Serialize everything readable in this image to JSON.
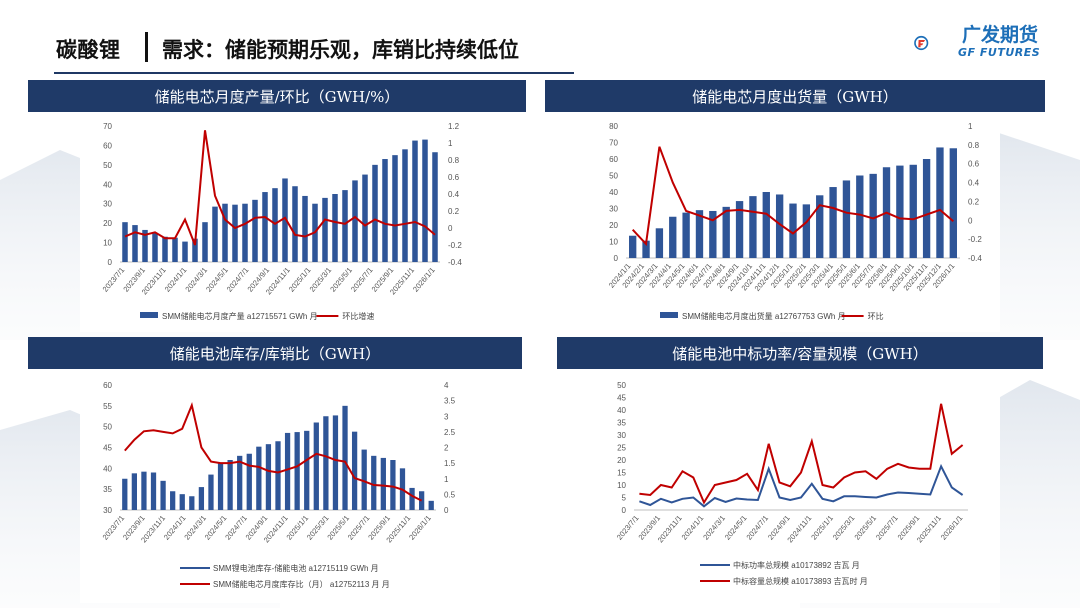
{
  "header": {
    "title": "碳酸锂",
    "subtitle": "需求：储能预期乐观，库销比持续低位",
    "logo_cn": "广发期货",
    "logo_en": "GF FUTURES"
  },
  "colors": {
    "bar": "#2f5597",
    "line_red": "#c00000",
    "line_blue": "#2f5597",
    "panel": "#1f3a68"
  },
  "panels": [
    {
      "title": "储能电芯月度产量/环比（GWH/%）"
    },
    {
      "title": "储能电芯月度出货量（GWH）"
    },
    {
      "title": "储能电池库存/库销比（GWH）"
    },
    {
      "title": "储能电池中标功率/容量规模（GWH）"
    }
  ],
  "chart_data": [
    {
      "type": "bar",
      "x_ticks": [
        "2023/7/1",
        "2023/9/1",
        "2023/11/1",
        "2024/1/1",
        "2024/3/1",
        "2024/5/1",
        "2024/7/1",
        "2024/9/1",
        "2024/11/1",
        "2025/1/1",
        "2025/3/1",
        "2025/5/1",
        "2025/7/1",
        "2025/9/1",
        "2025/11/1",
        "2026/1/1"
      ],
      "left_ticks": [
        "0",
        "10",
        "20",
        "30",
        "40",
        "50",
        "60",
        "70"
      ],
      "right_ticks": [
        "-0.4",
        "-0.2",
        "0",
        "0.2",
        "0.4",
        "0.6",
        "0.8",
        "1",
        "1.2"
      ],
      "ylim": [
        0,
        70
      ],
      "y2lim": [
        -0.4,
        1.2
      ],
      "series": [
        {
          "name": "SMM储能电芯月度产量 a12715571 GWh 月",
          "type": "bar",
          "values": [
            20.5,
            19,
            16.5,
            15,
            13,
            12.5,
            10.5,
            12,
            20.5,
            28.5,
            30,
            29.5,
            30,
            32,
            36,
            38,
            43,
            39,
            34,
            30,
            33,
            35,
            37,
            42,
            45,
            50,
            53,
            55,
            58,
            62.5,
            63,
            56.5
          ]
        },
        {
          "name": "环比增速",
          "type": "line",
          "axis": "right",
          "values": [
            -0.1,
            -0.05,
            -0.08,
            -0.05,
            -0.12,
            -0.12,
            0.1,
            -0.2,
            1.15,
            0.38,
            0.1,
            0.0,
            0.05,
            0.12,
            0.13,
            0.05,
            0.12,
            -0.08,
            -0.1,
            -0.05,
            0.1,
            0.07,
            0.05,
            0.13,
            0.03,
            0.1,
            0.05,
            0.03,
            0.05,
            0.07,
            0.02,
            -0.08
          ]
        }
      ]
    },
    {
      "type": "bar",
      "x_ticks": [
        "2024/1/1",
        "2024/2/1",
        "2024/3/1",
        "2024/4/1",
        "2024/5/1",
        "2024/6/1",
        "2024/7/1",
        "2024/8/1",
        "2024/9/1",
        "2024/10/1",
        "2024/11/1",
        "2024/12/1",
        "2025/1/1",
        "2025/2/1",
        "2025/3/1",
        "2025/4/1",
        "2025/5/1",
        "2025/6/1",
        "2025/7/1",
        "2025/8/1",
        "2025/9/1",
        "2025/10/1",
        "2025/11/1",
        "2025/12/1",
        "2026/1/1"
      ],
      "left_ticks": [
        "0",
        "10",
        "20",
        "30",
        "40",
        "50",
        "60",
        "70",
        "80"
      ],
      "right_ticks": [
        "-0.4",
        "-0.2",
        "0",
        "0.2",
        "0.4",
        "0.6",
        "0.8",
        "1"
      ],
      "ylim": [
        0,
        80
      ],
      "y2lim": [
        -0.4,
        1.0
      ],
      "series": [
        {
          "name": "SMM储能电芯月度出货量 a12767753 GWh 月",
          "type": "bar",
          "values": [
            13.5,
            10.5,
            18,
            25,
            27.5,
            29,
            28.5,
            31,
            34.5,
            37.5,
            40,
            38.5,
            33,
            32.5,
            38,
            43,
            47,
            50,
            51,
            55,
            56,
            56.5,
            60,
            67,
            66.5
          ]
        },
        {
          "name": "环比",
          "type": "line",
          "axis": "right",
          "values": [
            -0.1,
            -0.25,
            0.78,
            0.4,
            0.1,
            0.05,
            0.0,
            0.1,
            0.11,
            0.09,
            0.07,
            -0.04,
            -0.14,
            -0.02,
            0.16,
            0.13,
            0.08,
            0.06,
            0.02,
            0.08,
            0.02,
            0.01,
            0.06,
            0.11,
            -0.01
          ]
        }
      ]
    },
    {
      "type": "bar",
      "x_ticks": [
        "2023/7/1",
        "2023/9/1",
        "2023/11/1",
        "2024/1/1",
        "2024/3/1",
        "2024/5/1",
        "2024/7/1",
        "2024/9/1",
        "2024/11/1",
        "2025/1/1",
        "2025/3/1",
        "2025/5/1",
        "2025/7/1",
        "2025/9/1",
        "2025/11/1",
        "2026/1/1"
      ],
      "left_ticks": [
        "30",
        "35",
        "40",
        "45",
        "50",
        "55",
        "60"
      ],
      "right_ticks": [
        "0",
        "0.5",
        "1",
        "1.5",
        "2",
        "2.5",
        "3",
        "3.5",
        "4"
      ],
      "ylim": [
        30,
        60
      ],
      "y2lim": [
        0,
        4
      ],
      "series": [
        {
          "name": "SMM锂电池库存-储能电池 a12715119 GWh 月",
          "type": "bar",
          "values": [
            37.5,
            38.8,
            39.2,
            39,
            37,
            34.5,
            33.8,
            33.3,
            35.5,
            38.5,
            41.2,
            42,
            43,
            43.5,
            45.2,
            45.8,
            46.5,
            48.5,
            48.7,
            49,
            51,
            52.5,
            52.7,
            55,
            48.8,
            44.5,
            43,
            42.5,
            42,
            40,
            35.3,
            34.5,
            32.2
          ]
        },
        {
          "name": "SMM储能电芯月度库存比（月） a12752113 月 月",
          "type": "line",
          "axis": "right",
          "values": [
            1.9,
            2.25,
            2.52,
            2.55,
            2.5,
            2.45,
            2.6,
            3.35,
            2.0,
            1.55,
            1.5,
            1.5,
            1.55,
            1.42,
            1.38,
            1.25,
            1.2,
            1.3,
            1.4,
            1.6,
            1.8,
            1.72,
            1.6,
            1.55,
            1.02,
            0.92,
            0.8,
            0.78,
            0.75,
            0.65,
            0.45,
            0.3
          ]
        }
      ]
    },
    {
      "type": "line",
      "x_ticks": [
        "2023/7/1",
        "2023/9/1",
        "2023/11/1",
        "2024/1/1",
        "2024/3/1",
        "2024/5/1",
        "2024/7/1",
        "2024/9/1",
        "2024/11/1",
        "2025/1/1",
        "2025/3/1",
        "2025/5/1",
        "2025/7/1",
        "2025/9/1",
        "2025/11/1",
        "2026/1/1"
      ],
      "left_ticks": [
        "0",
        "5",
        "10",
        "15",
        "20",
        "25",
        "30",
        "35",
        "40",
        "45",
        "50"
      ],
      "ylim": [
        0,
        50
      ],
      "series": [
        {
          "name": "中标功率总规模 a10173892 吉瓦 月",
          "color": "#2f5597",
          "values": [
            3.5,
            2.0,
            4.5,
            3.0,
            4.5,
            5.0,
            1.5,
            4.8,
            3.2,
            4.6,
            4.2,
            4.0,
            16.5,
            5.0,
            4.0,
            5.0,
            10.5,
            4.5,
            3.5,
            5.5,
            5.5,
            5.2,
            5.0,
            6.2,
            7.0,
            6.8,
            6.5,
            6.2,
            17.5,
            9.0,
            6.0
          ]
        },
        {
          "name": "中标容量总规模 a10173893 吉瓦时 月",
          "color": "#c00000",
          "values": [
            6.5,
            6.0,
            10.0,
            9.0,
            15.5,
            13.0,
            3.0,
            10.0,
            11.0,
            12.0,
            14.5,
            8.0,
            26.5,
            11.0,
            9.5,
            15.0,
            27.5,
            10.0,
            9.0,
            13.0,
            15.0,
            15.5,
            12.5,
            16.5,
            18.5,
            17.0,
            16.5,
            16.5,
            42.5,
            22.5,
            26.0
          ]
        }
      ]
    }
  ]
}
